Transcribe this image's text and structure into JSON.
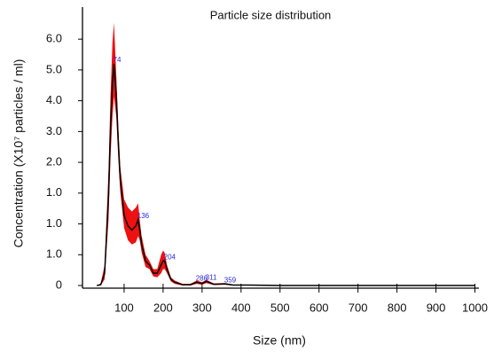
{
  "chart_data": {
    "type": "line",
    "title": "Particle size distribution",
    "x_label": "Size (nm)",
    "y_label": "Concentration (X10⁷ particles / ml)",
    "x": [
      30,
      40,
      50,
      60,
      65,
      70,
      74,
      80,
      85,
      90,
      100,
      110,
      120,
      130,
      136,
      140,
      145,
      155,
      165,
      175,
      185,
      195,
      200,
      204,
      210,
      220,
      230,
      250,
      270,
      286,
      300,
      311,
      330,
      359,
      380,
      420,
      500,
      1000
    ],
    "values": [
      0,
      0.02,
      0.3,
      2.2,
      3.8,
      4.9,
      5.4,
      4.6,
      3.5,
      2.6,
      1.7,
      1.45,
      1.35,
      1.45,
      1.6,
      1.35,
      1.0,
      0.6,
      0.5,
      0.3,
      0.3,
      0.5,
      0.6,
      0.6,
      0.4,
      0.15,
      0.08,
      0.02,
      0.02,
      0.08,
      0.05,
      0.1,
      0.03,
      0.04,
      0.01,
      0.01,
      0,
      0
    ],
    "band_upper": [
      0,
      0.05,
      0.5,
      2.8,
      4.6,
      5.9,
      6.4,
      5.1,
      3.9,
      2.9,
      2.1,
      1.9,
      1.8,
      1.9,
      2.0,
      1.6,
      1.2,
      0.75,
      0.6,
      0.4,
      0.4,
      0.75,
      0.85,
      0.8,
      0.5,
      0.2,
      0.12,
      0.04,
      0.04,
      0.12,
      0.08,
      0.14,
      0.05,
      0.06,
      0.02,
      0.02,
      0.01,
      0.01
    ],
    "band_lower": [
      0,
      0,
      0.15,
      1.6,
      3.1,
      4.1,
      4.6,
      4.1,
      3.1,
      2.3,
      1.4,
      1.1,
      1.0,
      1.05,
      1.2,
      1.1,
      0.8,
      0.45,
      0.4,
      0.22,
      0.2,
      0.3,
      0.4,
      0.4,
      0.3,
      0.1,
      0.04,
      0,
      0,
      0.04,
      0.02,
      0.06,
      0.01,
      0.02,
      0,
      0,
      0,
      0
    ],
    "color": "#000000",
    "band_color": "#ee1111",
    "peak_labels": [
      74,
      136,
      204,
      286,
      311,
      359
    ],
    "xlim": [
      0,
      1000
    ],
    "xticks": [
      100,
      200,
      300,
      400,
      500,
      600,
      700,
      800,
      900,
      1000
    ],
    "ylim": [
      0,
      6.5
    ],
    "yticks": [
      0,
      {
        "value": 0.75,
        "label": "1.0"
      },
      {
        "value": 1.5,
        "label": "1.0"
      },
      {
        "value": 2.25,
        "label": "1.0"
      },
      {
        "value": 3,
        "label": "2.0"
      },
      {
        "value": 3.75,
        "label": "3.0"
      },
      {
        "value": 4.5,
        "label": "4.0"
      },
      {
        "value": 5.25,
        "label": "5.0"
      },
      {
        "value": 6,
        "label": "6.0"
      }
    ],
    "grid": false
  }
}
